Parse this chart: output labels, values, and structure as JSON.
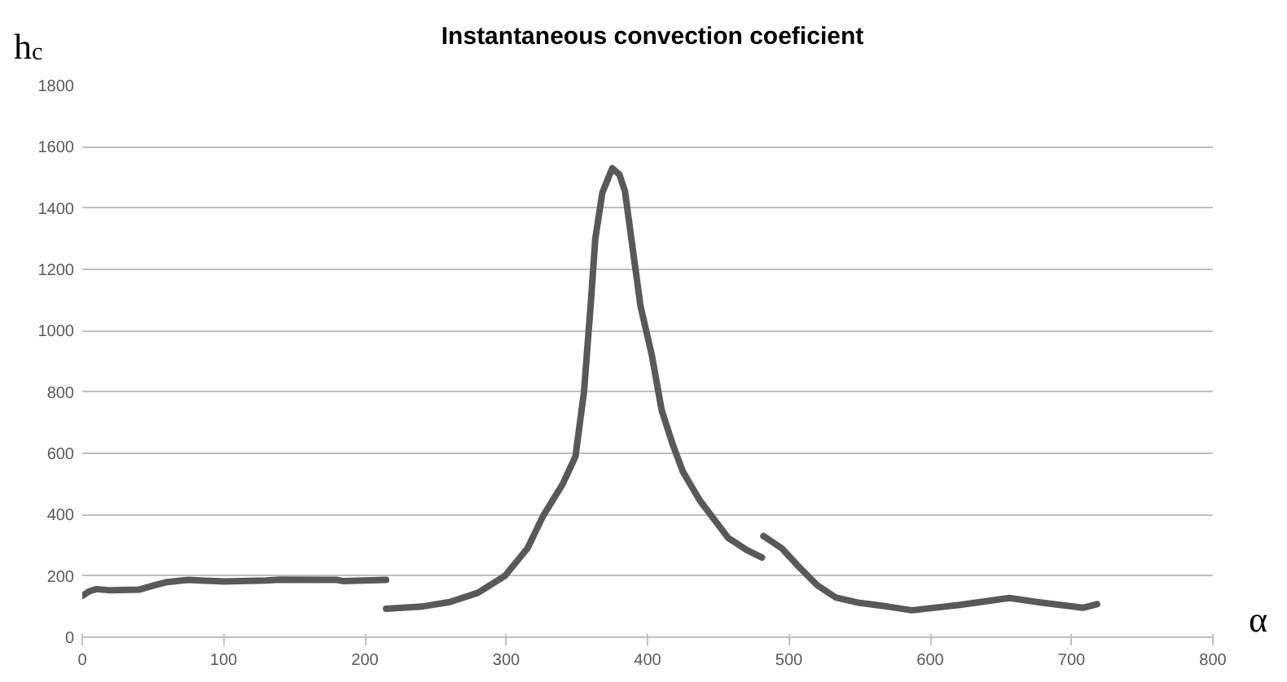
{
  "chart_data": {
    "type": "line",
    "title": "Instantaneous convection coeficient",
    "xlabel": "α",
    "ylabel": "h$_{c}$",
    "series": [
      {
        "color": "#595959",
        "x": [
          0,
          5,
          10,
          20,
          40,
          50,
          60,
          75,
          100,
          130,
          140,
          180,
          185,
          215
        ],
        "values": [
          135,
          150,
          157,
          153,
          155,
          168,
          180,
          187,
          182,
          185,
          188,
          187,
          183,
          187
        ]
      },
      {
        "color": "#595959",
        "x": [
          215,
          240,
          260,
          280,
          299,
          315,
          326,
          340,
          349,
          355,
          360,
          363,
          368,
          375,
          380,
          384,
          390,
          395,
          403,
          410,
          418,
          425,
          437,
          457,
          470,
          481
        ],
        "values": [
          93,
          100,
          115,
          145,
          200,
          290,
          395,
          500,
          590,
          800,
          1100,
          1300,
          1450,
          1530,
          1510,
          1455,
          1250,
          1080,
          920,
          740,
          626,
          540,
          446,
          324,
          285,
          260
        ]
      },
      {
        "color": "#595959",
        "x": [
          482,
          495,
          506,
          520,
          533,
          550,
          570,
          587,
          620,
          656,
          680,
          708,
          718
        ],
        "values": [
          330,
          290,
          235,
          170,
          130,
          112,
          100,
          88,
          105,
          128,
          112,
          96,
          108
        ]
      }
    ],
    "xlim": [
      0,
      800
    ],
    "ylim": [
      0,
      1800
    ],
    "xticks": [
      0,
      100,
      200,
      300,
      400,
      500,
      600,
      700,
      800
    ],
    "yticks": [
      0,
      200,
      400,
      600,
      800,
      1000,
      1200,
      1400,
      1600,
      1800
    ],
    "grid": "y",
    "line_style": "solid"
  }
}
